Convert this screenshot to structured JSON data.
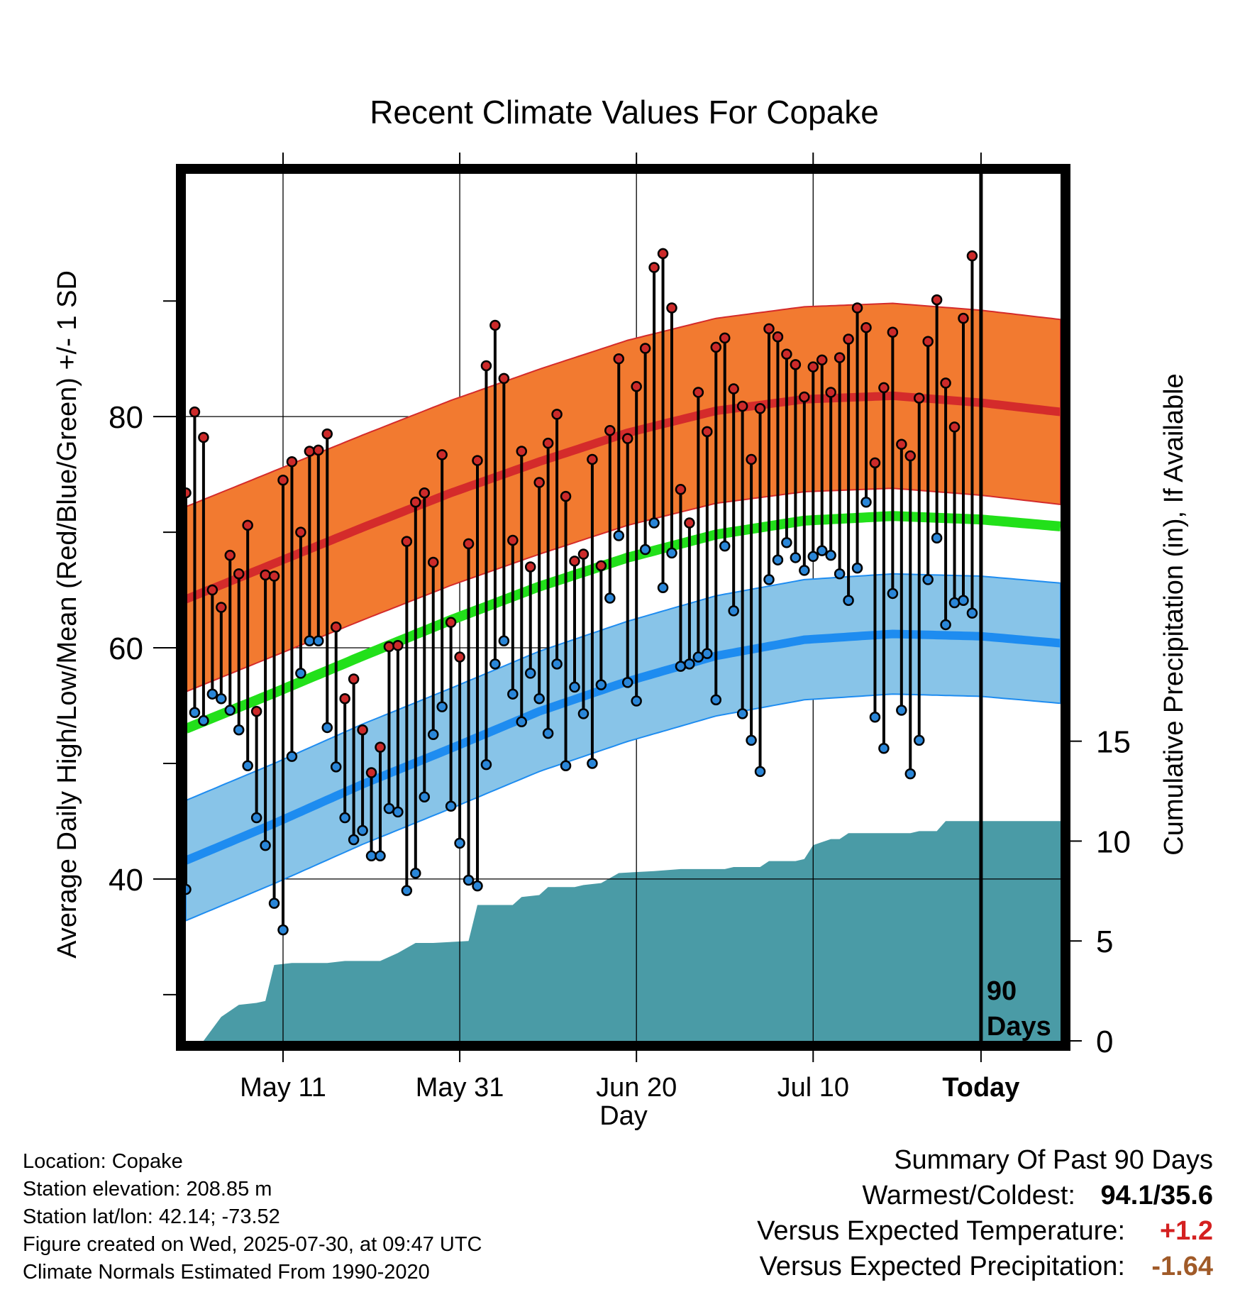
{
  "colors": {
    "high_band": "#f27a30",
    "high_mean": "#d42b2b",
    "mean_line": "#22e01a",
    "low_band": "#88c4e8",
    "low_mean": "#1e8cf0",
    "precip": "#4a9ba6",
    "high_marker": "#cc2a2a",
    "low_marker": "#2a86d8",
    "temp_anomaly": "#d42020",
    "precip_anomaly": "#a05a28"
  },
  "chart_data": {
    "type": "line",
    "title": "Recent Climate Values For Copake",
    "xlabel": "Day",
    "ylabel": "Average Daily High/Low/Mean (Red/Blue/Green) +/- 1 SD",
    "y2label": "Cumulative Precipitation (in), If Available",
    "x_range_days": [
      -90,
      9
    ],
    "x_ticks": [
      {
        "day": -79,
        "label": "May 11"
      },
      {
        "day": -59,
        "label": "May 31"
      },
      {
        "day": -39,
        "label": "Jun 20"
      },
      {
        "day": -19,
        "label": "Jul 10"
      },
      {
        "day": 0,
        "label": "Today"
      }
    ],
    "ylim": [
      26,
      101
    ],
    "y_ticks": [
      40,
      60,
      80
    ],
    "y_minor_ticks": [
      30,
      50,
      70,
      90
    ],
    "y2lim": [
      0,
      43.4
    ],
    "y2_ticks": [
      0,
      5,
      10,
      15
    ],
    "today_label": "90\nDays",
    "grid": true,
    "normals": {
      "day": [
        -90,
        -80,
        -70,
        -60,
        -50,
        -40,
        -30,
        -20,
        -10,
        0,
        9
      ],
      "high_mean": [
        64.2,
        67.3,
        70.4,
        73.4,
        76.1,
        78.6,
        80.5,
        81.5,
        81.8,
        81.2,
        80.4
      ],
      "high_sd": 8,
      "mean": [
        53.0,
        56.1,
        59.3,
        62.4,
        65.3,
        67.8,
        69.8,
        71.0,
        71.4,
        71.1,
        70.5
      ],
      "mean_halfwidth": 0.6,
      "low_mean": [
        41.6,
        44.8,
        48.2,
        51.3,
        54.5,
        57.1,
        59.3,
        60.7,
        61.2,
        61.0,
        60.4
      ],
      "low_sd": 5.2
    },
    "series": [
      {
        "name": "High",
        "values": [
          73.4,
          80.4,
          78.2,
          65.0,
          63.5,
          68.0,
          66.4,
          70.6,
          54.5,
          66.3,
          66.2,
          74.5,
          76.1,
          70.0,
          77.0,
          77.1,
          78.5,
          61.8,
          55.6,
          57.3,
          52.9,
          49.2,
          51.4,
          60.1,
          60.2,
          69.2,
          72.6,
          73.4,
          67.4,
          76.7,
          62.2,
          59.2,
          69.0,
          76.2,
          84.4,
          87.9,
          83.3,
          69.3,
          77.0,
          67.0,
          74.3,
          77.7,
          80.2,
          73.1,
          67.5,
          68.1,
          76.3,
          67.1,
          78.8,
          85.0,
          78.1,
          82.6,
          85.9,
          92.9,
          94.1,
          89.4,
          73.7,
          70.8,
          82.1,
          78.7,
          86.0,
          86.8,
          82.4,
          80.9,
          76.3,
          80.7,
          87.6,
          86.9,
          85.4,
          84.5,
          81.7,
          84.3,
          84.9,
          82.1,
          85.1,
          86.7,
          89.4,
          87.7,
          76.0,
          82.5,
          87.3,
          77.6,
          76.6,
          81.6,
          86.5,
          90.1,
          82.9,
          79.1,
          88.5,
          93.9
        ]
      },
      {
        "name": "Low",
        "values": [
          39.1,
          54.4,
          53.7,
          56.0,
          55.6,
          54.6,
          52.9,
          49.8,
          45.3,
          42.9,
          37.9,
          35.6,
          50.6,
          57.8,
          60.6,
          60.6,
          53.1,
          49.7,
          45.3,
          43.4,
          44.2,
          42.0,
          42.0,
          46.1,
          45.8,
          39.0,
          40.5,
          47.1,
          52.5,
          54.9,
          46.3,
          43.1,
          39.9,
          39.4,
          49.9,
          58.6,
          60.6,
          56.0,
          53.6,
          57.8,
          55.6,
          52.6,
          58.6,
          49.8,
          56.6,
          54.3,
          50.0,
          56.8,
          64.3,
          69.7,
          57.0,
          55.4,
          68.5,
          70.8,
          65.2,
          68.2,
          58.4,
          58.6,
          59.2,
          59.5,
          55.5,
          68.8,
          63.2,
          54.3,
          52.0,
          49.3,
          65.9,
          67.6,
          69.1,
          67.8,
          66.7,
          67.9,
          68.4,
          68.0,
          66.4,
          64.1,
          66.9,
          72.6,
          54.0,
          51.3,
          64.7,
          54.6,
          49.1,
          52.0,
          65.9,
          69.5,
          62.0,
          63.9,
          64.1,
          63.0
        ]
      },
      {
        "name": "Cumulative Precipitation",
        "points": [
          [
            -90,
            0.0
          ],
          [
            -88,
            0.0
          ],
          [
            -86,
            1.2
          ],
          [
            -84,
            1.8
          ],
          [
            -82,
            1.9
          ],
          [
            -81,
            2.0
          ],
          [
            -80,
            3.8
          ],
          [
            -78,
            3.9
          ],
          [
            -74,
            3.9
          ],
          [
            -72,
            4.0
          ],
          [
            -68,
            4.0
          ],
          [
            -66,
            4.4
          ],
          [
            -64,
            4.9
          ],
          [
            -62,
            4.9
          ],
          [
            -58,
            5.0
          ],
          [
            -57,
            6.8
          ],
          [
            -53,
            6.8
          ],
          [
            -52,
            7.2
          ],
          [
            -50,
            7.3
          ],
          [
            -49,
            7.7
          ],
          [
            -46,
            7.7
          ],
          [
            -45,
            7.8
          ],
          [
            -43,
            7.9
          ],
          [
            -41,
            8.4
          ],
          [
            -37,
            8.5
          ],
          [
            -34,
            8.6
          ],
          [
            -29,
            8.6
          ],
          [
            -28,
            8.7
          ],
          [
            -25,
            8.7
          ],
          [
            -24,
            9.0
          ],
          [
            -22,
            9.0
          ],
          [
            -21,
            9.0
          ],
          [
            -20,
            9.1
          ],
          [
            -19,
            9.8
          ],
          [
            -17,
            10.1
          ],
          [
            -16,
            10.1
          ],
          [
            -15,
            10.4
          ],
          [
            -8,
            10.4
          ],
          [
            -7,
            10.5
          ],
          [
            -5,
            10.5
          ],
          [
            -4,
            11.0
          ],
          [
            9,
            11.0
          ]
        ]
      }
    ]
  },
  "footer": {
    "location": "Location: Copake",
    "elevation": "Station elevation: 208.85 m",
    "latlon": "Station lat/lon: 42.14; -73.52",
    "created": "Figure created on Wed, 2025-07-30, at 09:47 UTC",
    "normals": "Climate Normals Estimated From 1990-2020"
  },
  "summary": {
    "title": "Summary Of Past 90 Days",
    "warmest_coldest_label": "Warmest/Coldest:",
    "warmest_coldest_value": "94.1/35.6",
    "temp_label": "Versus Expected Temperature:",
    "temp_value": "+1.2",
    "precip_label": "Versus Expected Precipitation:",
    "precip_value": "-1.64"
  }
}
